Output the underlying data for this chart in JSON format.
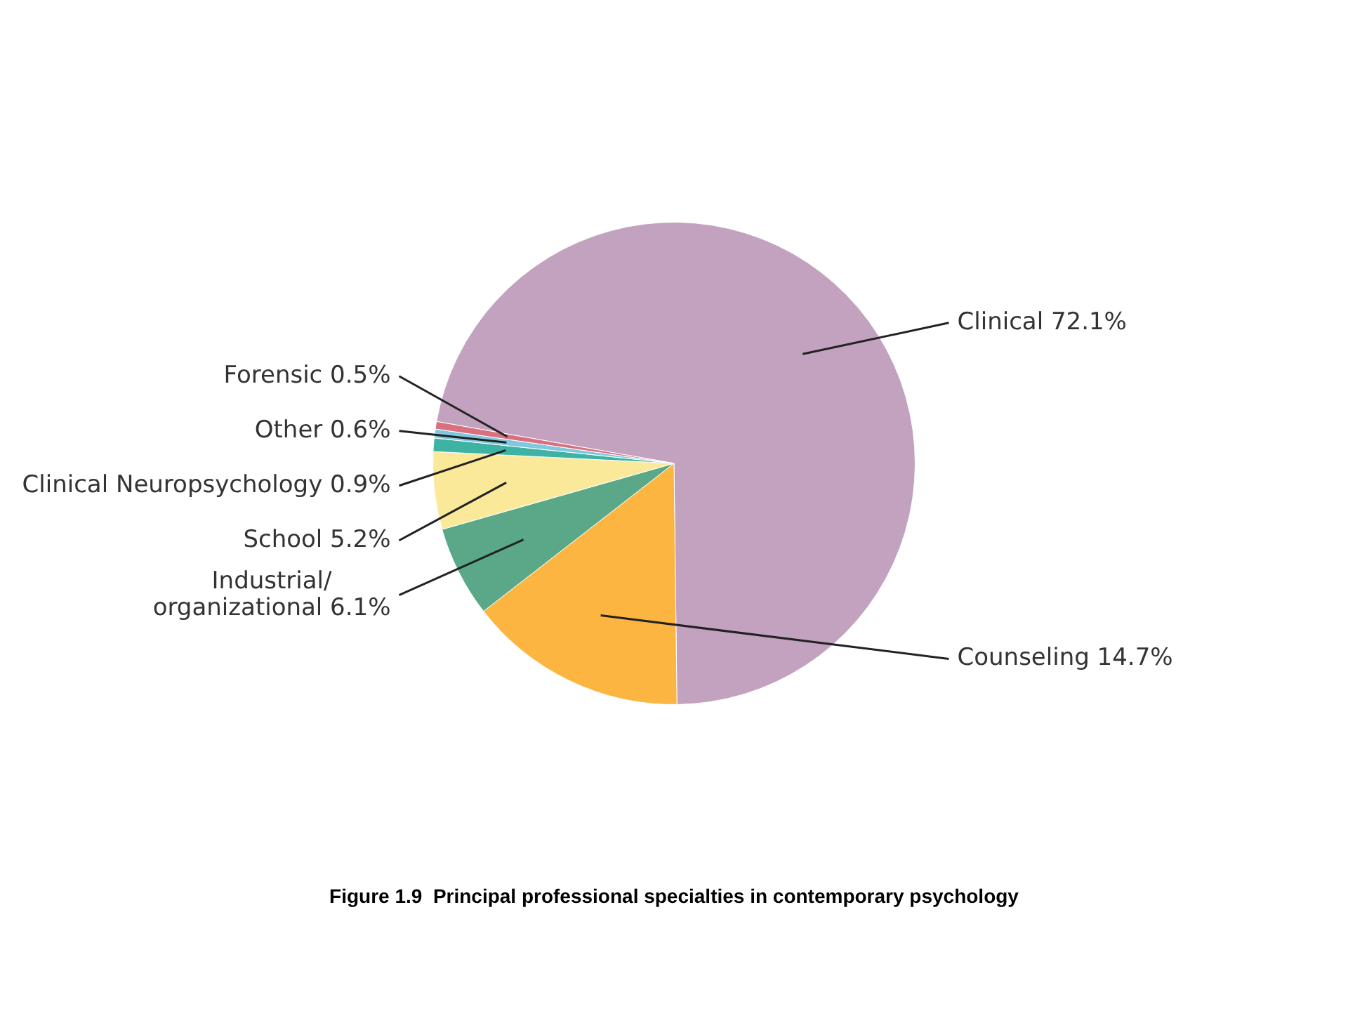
{
  "chart_data": {
    "type": "pie",
    "title": "Figure 1.9  Principal professional specialties in contemporary psychology",
    "categories": [
      "Clinical",
      "Counseling",
      "Industrial/organizational",
      "School",
      "Clinical Neuropsychology",
      "Other",
      "Forensic"
    ],
    "values": [
      72.1,
      14.7,
      6.1,
      5.2,
      0.9,
      0.6,
      0.5
    ],
    "value_labels": [
      "72.1%",
      "14.7%",
      "6.1%",
      "5.2%",
      "0.9%",
      "0.6%",
      "0.5%"
    ],
    "colors": [
      "#c2a2bf",
      "#fbb540",
      "#5aa888",
      "#fbe99a",
      "#3fb3a3",
      "#80c8e0",
      "#d87080"
    ],
    "legend": false
  }
}
